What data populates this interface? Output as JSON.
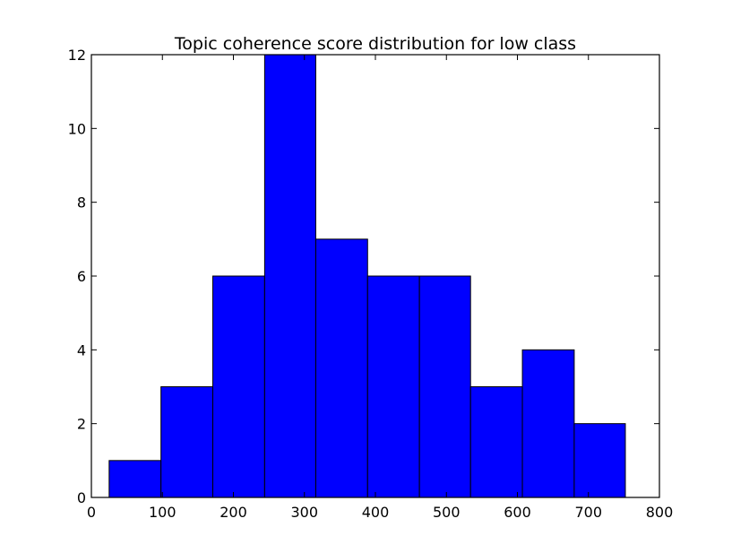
{
  "chart_data": {
    "type": "bar",
    "title": "Topic coherence score distribution for low class",
    "xlabel": "",
    "ylabel": "",
    "xlim": [
      0,
      800
    ],
    "ylim": [
      0,
      12
    ],
    "grid": false,
    "bar_color": "#0000ff",
    "edge_color": "#000000",
    "bins": [
      {
        "x0": 25,
        "x1": 98,
        "count": 1
      },
      {
        "x0": 98,
        "x1": 171,
        "count": 3
      },
      {
        "x0": 171,
        "x1": 244,
        "count": 6
      },
      {
        "x0": 244,
        "x1": 316,
        "count": 12
      },
      {
        "x0": 316,
        "x1": 389,
        "count": 7
      },
      {
        "x0": 389,
        "x1": 462,
        "count": 6
      },
      {
        "x0": 462,
        "x1": 534,
        "count": 6
      },
      {
        "x0": 534,
        "x1": 607,
        "count": 3
      },
      {
        "x0": 607,
        "x1": 680,
        "count": 4
      },
      {
        "x0": 680,
        "x1": 752,
        "count": 2
      }
    ],
    "x_ticks": [
      {
        "value": 0,
        "label": "0"
      },
      {
        "value": 100,
        "label": "100"
      },
      {
        "value": 200,
        "label": "200"
      },
      {
        "value": 300,
        "label": "300"
      },
      {
        "value": 400,
        "label": "400"
      },
      {
        "value": 500,
        "label": "500"
      },
      {
        "value": 600,
        "label": "600"
      },
      {
        "value": 700,
        "label": "700"
      },
      {
        "value": 800,
        "label": "800"
      }
    ],
    "y_ticks": [
      {
        "value": 0,
        "label": "0"
      },
      {
        "value": 2,
        "label": "2"
      },
      {
        "value": 4,
        "label": "4"
      },
      {
        "value": 6,
        "label": "6"
      },
      {
        "value": 8,
        "label": "8"
      },
      {
        "value": 10,
        "label": "10"
      },
      {
        "value": 12,
        "label": "12"
      }
    ]
  }
}
